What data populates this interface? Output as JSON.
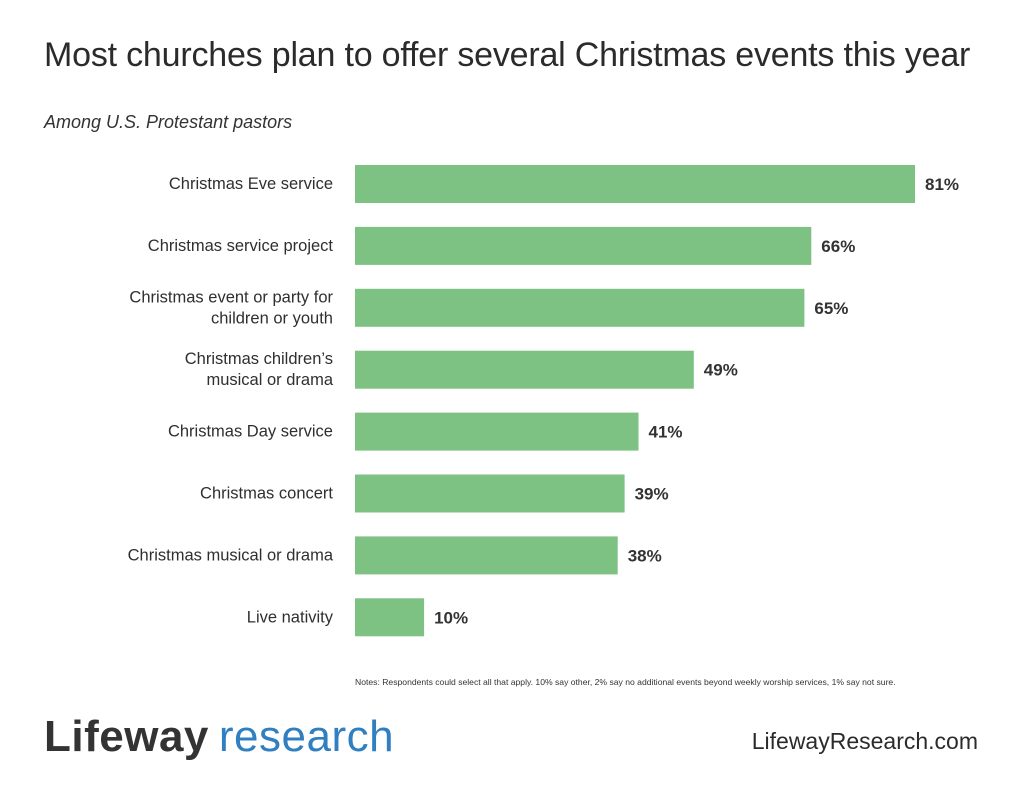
{
  "header": {
    "title": "Most churches plan to offer several Christmas events this year",
    "subtitle": "Among U.S. Protestant pastors"
  },
  "chart_data": {
    "type": "bar",
    "orientation": "horizontal",
    "categories": [
      [
        "Christmas Eve service"
      ],
      [
        "Christmas service project"
      ],
      [
        "Christmas event or party for",
        "children or youth"
      ],
      [
        "Christmas children’s",
        "musical or drama"
      ],
      [
        "Christmas Day service"
      ],
      [
        "Christmas concert"
      ],
      [
        "Christmas musical or drama"
      ],
      [
        "Live nativity"
      ]
    ],
    "values": [
      81,
      66,
      65,
      49,
      41,
      39,
      38,
      10
    ],
    "value_labels": [
      "81%",
      "66%",
      "65%",
      "49%",
      "41%",
      "39%",
      "38%",
      "10%"
    ],
    "unit": "%",
    "xlim": [
      0,
      100
    ],
    "bar_color": "#7dc282",
    "grid": false,
    "legend": "none"
  },
  "notes": "Notes: Respondents could select all that apply. 10% say other, 2% say no additional events beyond weekly worship services, 1% say not sure.",
  "footer": {
    "logo_brand": "Lifeway",
    "logo_sub": "research",
    "website": "LifewayResearch.com"
  },
  "colors": {
    "accent": "#2f7fc1",
    "bar": "#7dc282",
    "text": "#2f2f2f"
  }
}
